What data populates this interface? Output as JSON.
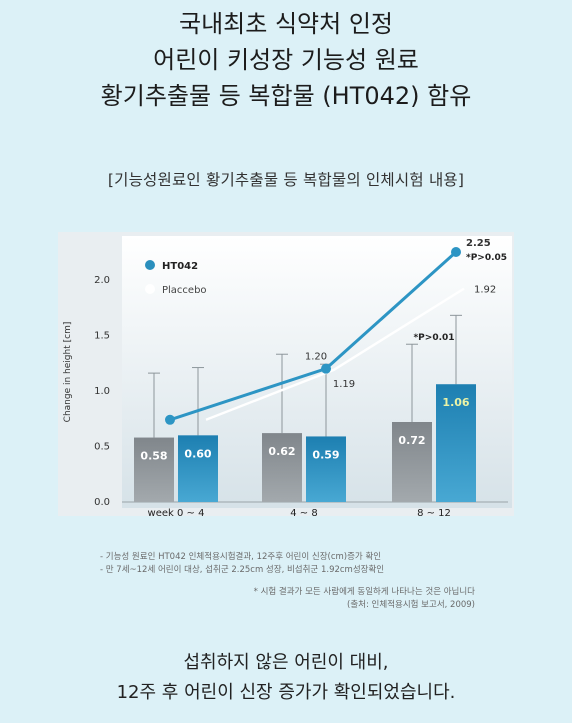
{
  "headline": {
    "line1": "국내최초 식약처 인정",
    "line2": "어린이 키성장 기능성 원료",
    "line3": "황기추출물 등 복합물 (HT042) 함유"
  },
  "subtitle": "[기능성원료인 황기추출물 등 복합물의 인체시험 내용]",
  "chart_data": {
    "type": "bar",
    "categories": [
      "week 0 ~ 4",
      "4 ~ 8",
      "8 ~ 12"
    ],
    "ylabel": "Change in height [cm]",
    "ylim": [
      0,
      2.25
    ],
    "yticks": [
      "0.0",
      "0.5",
      "1.0",
      "1.5",
      "2.0"
    ],
    "legend_placement": "top-left",
    "series": [
      {
        "name": "Placcebo",
        "color": "#8a8f93",
        "bar_values": [
          0.58,
          0.62,
          0.72
        ],
        "bar_labels": [
          "0.58",
          "0.62",
          "0.72"
        ],
        "error_upper": [
          1.16,
          1.33,
          1.42
        ],
        "line_values": [
          null,
          1.19,
          1.92
        ],
        "line_labels": [
          "",
          "1.19",
          "1.92"
        ],
        "line_color": "#ffffff"
      },
      {
        "name": "HT042",
        "color": "#2a8fbd",
        "bar_values": [
          0.6,
          0.59,
          1.06
        ],
        "bar_labels": [
          "0.60",
          "0.59",
          "1.06"
        ],
        "error_upper": [
          1.21,
          1.24,
          1.68
        ],
        "line_values": [
          0.74,
          1.2,
          2.25
        ],
        "line_labels": [
          "",
          "1.20",
          "2.25"
        ],
        "line_color": "#2d95c4"
      }
    ],
    "annotations": [
      {
        "text": "*P>0.05",
        "category": 2,
        "value": 2.25
      },
      {
        "text": "*P>0.01",
        "category": 2,
        "value": 1.46
      }
    ]
  },
  "notes": {
    "n1": "- 기능성 원료인 HT042 인체적용시험결과, 12주후 어린이 신장(cm)증가 확인",
    "n2": "- 만 7세~12세 어린이 대상, 섭취군 2.25cm 성장, 비섭취군 1.92cm성장확인",
    "n3": "* 시험 결과가 모든 사람에게 동일하게 나타나는 것은 아닙니다",
    "n4": "(출처: 인체적용시험 보고서, 2009)"
  },
  "conclusion": {
    "line1": "섭취하지 않은 어린이 대비,",
    "line2": "12주 후 어린이 신장 증가가 확인되었습니다."
  }
}
